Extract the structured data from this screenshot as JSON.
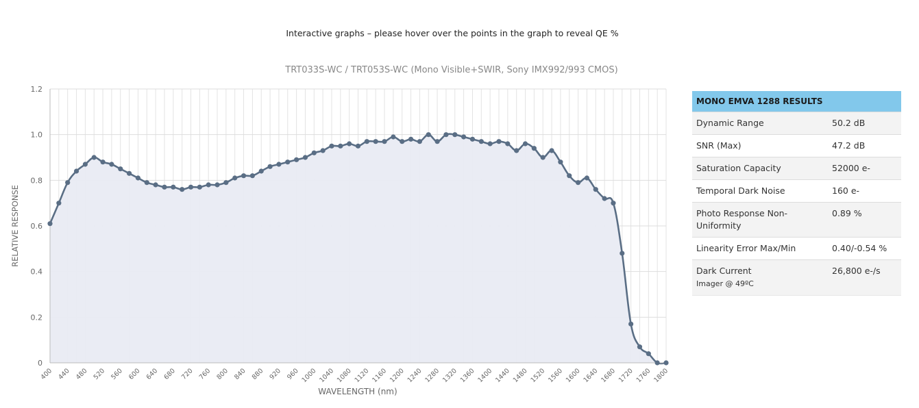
{
  "page": {
    "note": "Interactive graphs – please hover over the points in the graph to reveal QE %"
  },
  "chart_data": {
    "type": "area",
    "title": "TRT033S-WC / TRT053S-WC (Mono Visible+SWIR, Sony IMX992/993 CMOS)",
    "xlabel": "WAVELENGTH (nm)",
    "ylabel": "RELATIVE RESPONSE",
    "xlim": [
      400,
      1800
    ],
    "ylim": [
      0,
      1.2
    ],
    "x_ticks": [
      400,
      440,
      480,
      520,
      560,
      600,
      640,
      680,
      720,
      760,
      800,
      840,
      880,
      920,
      960,
      1000,
      1040,
      1080,
      1120,
      1160,
      1200,
      1240,
      1280,
      1320,
      1360,
      1400,
      1440,
      1480,
      1520,
      1560,
      1600,
      1640,
      1680,
      1720,
      1760,
      1800
    ],
    "y_ticks": [
      0,
      0.2,
      0.4,
      0.6,
      0.8,
      1.0,
      1.2
    ],
    "y_tick_labels": [
      "0",
      "0.2",
      "0.4",
      "0.6",
      "0.8",
      "1.0",
      "1.2"
    ],
    "grid": true,
    "line_color": "#5a6e85",
    "fill_color": "#e9ebf3",
    "x": [
      400,
      420,
      440,
      460,
      480,
      500,
      520,
      540,
      560,
      580,
      600,
      620,
      640,
      660,
      680,
      700,
      720,
      740,
      760,
      780,
      800,
      820,
      840,
      860,
      880,
      900,
      920,
      940,
      960,
      980,
      1000,
      1020,
      1040,
      1060,
      1080,
      1100,
      1120,
      1140,
      1160,
      1180,
      1200,
      1220,
      1240,
      1260,
      1280,
      1300,
      1320,
      1340,
      1360,
      1380,
      1400,
      1420,
      1440,
      1460,
      1480,
      1500,
      1520,
      1540,
      1560,
      1580,
      1600,
      1620,
      1640,
      1660,
      1680,
      1700,
      1720,
      1740,
      1760,
      1780,
      1800
    ],
    "y": [
      0.61,
      0.7,
      0.79,
      0.84,
      0.87,
      0.9,
      0.88,
      0.87,
      0.85,
      0.83,
      0.81,
      0.79,
      0.78,
      0.77,
      0.77,
      0.76,
      0.77,
      0.77,
      0.78,
      0.78,
      0.79,
      0.81,
      0.82,
      0.82,
      0.84,
      0.86,
      0.87,
      0.88,
      0.89,
      0.9,
      0.92,
      0.93,
      0.95,
      0.95,
      0.96,
      0.95,
      0.97,
      0.97,
      0.97,
      0.99,
      0.97,
      0.98,
      0.97,
      1.0,
      0.97,
      1.0,
      1.0,
      0.99,
      0.98,
      0.97,
      0.96,
      0.97,
      0.96,
      0.93,
      0.96,
      0.94,
      0.9,
      0.93,
      0.88,
      0.82,
      0.79,
      0.81,
      0.76,
      0.72,
      0.7,
      0.48,
      0.17,
      0.07,
      0.04,
      0.0,
      0.0
    ]
  },
  "results": {
    "header": "MONO EMVA 1288 RESULTS",
    "rows": [
      {
        "label": "Dynamic Range",
        "value": "50.2 dB"
      },
      {
        "label": "SNR (Max)",
        "value": "47.2 dB"
      },
      {
        "label": "Saturation Capacity",
        "value": "52000 e-"
      },
      {
        "label": "Temporal Dark Noise",
        "value": "160 e-"
      },
      {
        "label": "Photo Response Non-Uniformity",
        "value": "0.89 %"
      },
      {
        "label": "Linearity Error Max/Min",
        "value": "0.40/-0.54 %"
      },
      {
        "label": "Dark Current",
        "sub": "Imager @ 49ºC",
        "value": "26,800 e-/s"
      }
    ]
  }
}
